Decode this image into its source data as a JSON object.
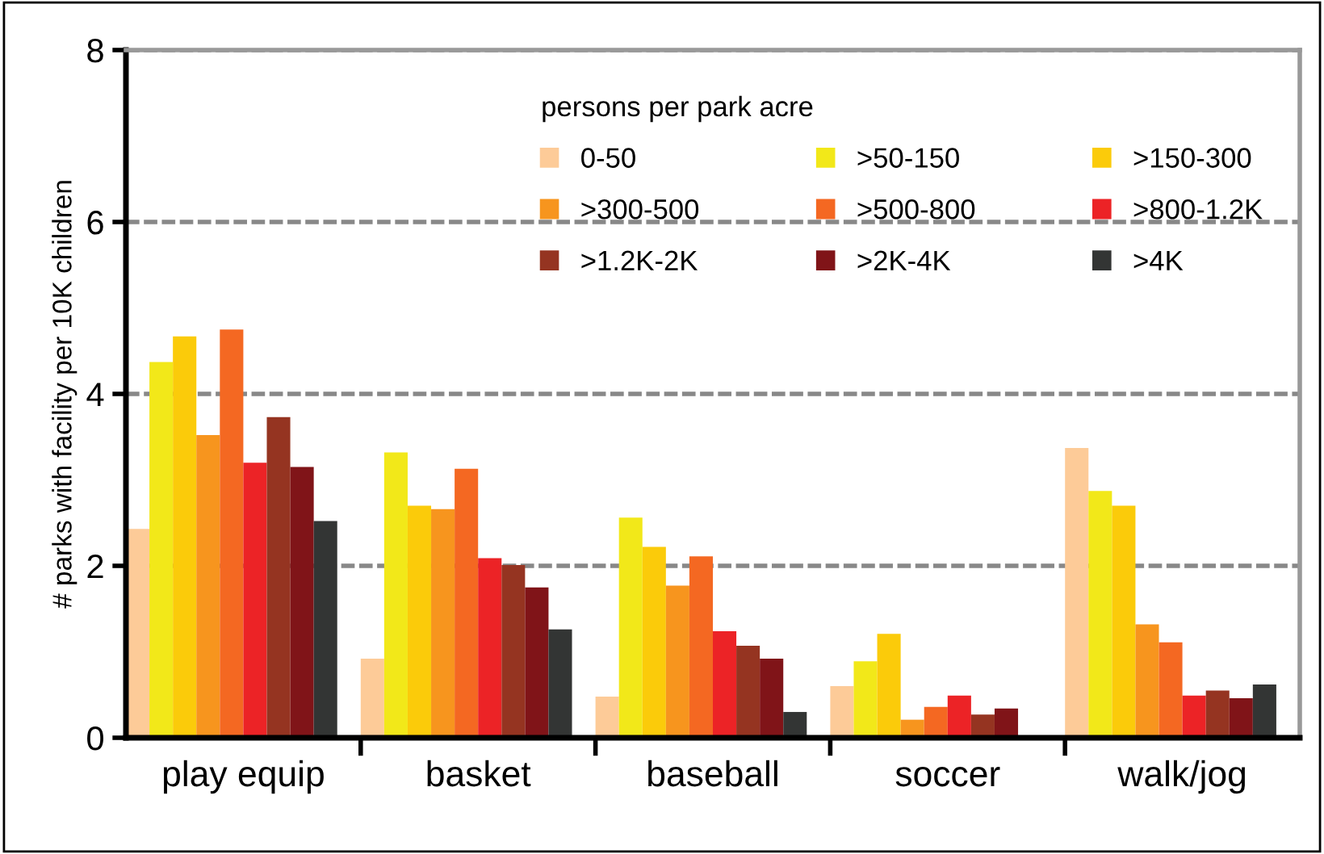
{
  "chart_data": {
    "type": "bar",
    "ylabel": "# parks with facility per 10K children",
    "legend_title": "persons per park acre",
    "categories": [
      "play equip",
      "basket",
      "baseball",
      "soccer",
      "walk/jog"
    ],
    "ylim": [
      0,
      8
    ],
    "yticks": [
      0,
      2,
      4,
      6,
      8
    ],
    "grid": "y",
    "legend": "top right",
    "series": [
      {
        "name": "0-50",
        "color": "#fdcb98",
        "values": [
          2.43,
          0.92,
          0.48,
          0.6,
          3.37
        ]
      },
      {
        "name": ">50-150",
        "color": "#f2e819",
        "values": [
          4.37,
          3.32,
          2.56,
          0.89,
          2.87
        ]
      },
      {
        "name": ">150-300",
        "color": "#fbcb0a",
        "values": [
          4.67,
          2.7,
          2.22,
          1.21,
          2.7
        ]
      },
      {
        "name": ">300-500",
        "color": "#f7951e",
        "values": [
          3.52,
          2.66,
          1.77,
          0.21,
          1.32
        ]
      },
      {
        "name": ">500-800",
        "color": "#f46822",
        "values": [
          4.75,
          3.13,
          2.11,
          0.36,
          1.11
        ]
      },
      {
        "name": ">800-1.2K",
        "color": "#ec2326",
        "values": [
          3.2,
          2.09,
          1.24,
          0.49,
          0.49
        ]
      },
      {
        "name": ">1.2K-2K",
        "color": "#953421",
        "values": [
          3.73,
          2.01,
          1.07,
          0.27,
          0.55
        ]
      },
      {
        "name": ">2K-4K",
        "color": "#801418",
        "values": [
          3.15,
          1.75,
          0.92,
          0.34,
          0.46
        ]
      },
      {
        "name": ">4K",
        "color": "#333534",
        "values": [
          2.52,
          1.26,
          0.3,
          0,
          0.62
        ]
      }
    ]
  }
}
